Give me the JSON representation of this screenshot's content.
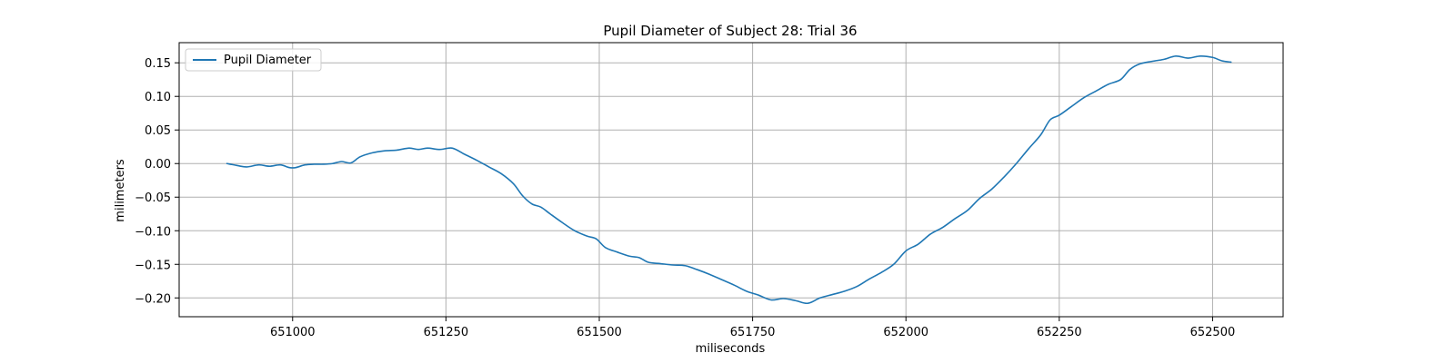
{
  "chart_data": {
    "type": "line",
    "title": "Pupil Diameter of Subject 28: Trial 36",
    "xlabel": "miliseconds",
    "ylabel": "milimeters",
    "xlim": [
      650815,
      652615
    ],
    "ylim": [
      -0.228,
      0.18
    ],
    "xticks": [
      651000,
      651250,
      651500,
      651750,
      652000,
      652250,
      652500
    ],
    "yticks": [
      -0.2,
      -0.15,
      -0.1,
      -0.05,
      0.0,
      0.05,
      0.1,
      0.15
    ],
    "xtick_labels": [
      "651000",
      "651250",
      "651500",
      "651750",
      "652000",
      "652250",
      "652500"
    ],
    "ytick_labels": [
      "−0.20",
      "−0.15",
      "−0.10",
      "−0.05",
      "0.00",
      "0.05",
      "0.10",
      "0.15"
    ],
    "grid": true,
    "legend_position": "top-left",
    "colors": {
      "series": "#1f77b4",
      "grid": "#b0b0b0"
    },
    "series": [
      {
        "name": "Pupil Diameter",
        "x": [
          650893,
          650910,
          650925,
          650945,
          650962,
          650980,
          650995,
          651005,
          651020,
          651035,
          651050,
          651065,
          651080,
          651095,
          651110,
          651130,
          651150,
          651170,
          651190,
          651205,
          651220,
          651240,
          651260,
          651280,
          651300,
          651320,
          651340,
          651360,
          651375,
          651390,
          651405,
          651420,
          651440,
          651460,
          651480,
          651495,
          651510,
          651530,
          651550,
          651565,
          651580,
          651600,
          651620,
          651640,
          651660,
          651680,
          651700,
          651720,
          651740,
          651760,
          651780,
          651800,
          651820,
          651840,
          651860,
          651880,
          651900,
          651920,
          651940,
          651960,
          651980,
          652000,
          652020,
          652040,
          652060,
          652080,
          652100,
          652120,
          652140,
          652160,
          652180,
          652200,
          652220,
          652235,
          652250,
          652270,
          652290,
          652310,
          652330,
          652350,
          652365,
          652380,
          652400,
          652420,
          652440,
          652460,
          652480,
          652500,
          652515,
          652530
        ],
        "values": [
          0.0,
          -0.003,
          -0.005,
          -0.002,
          -0.004,
          -0.002,
          -0.006,
          -0.006,
          -0.002,
          -0.001,
          -0.001,
          0.0,
          0.003,
          0.001,
          0.01,
          0.016,
          0.019,
          0.02,
          0.023,
          0.021,
          0.023,
          0.021,
          0.023,
          0.014,
          0.005,
          -0.005,
          -0.015,
          -0.03,
          -0.048,
          -0.06,
          -0.065,
          -0.075,
          -0.088,
          -0.1,
          -0.108,
          -0.112,
          -0.125,
          -0.132,
          -0.138,
          -0.14,
          -0.147,
          -0.149,
          -0.151,
          -0.152,
          -0.158,
          -0.165,
          -0.173,
          -0.181,
          -0.19,
          -0.196,
          -0.203,
          -0.201,
          -0.204,
          -0.208,
          -0.2,
          -0.195,
          -0.19,
          -0.183,
          -0.172,
          -0.162,
          -0.15,
          -0.13,
          -0.12,
          -0.105,
          -0.095,
          -0.082,
          -0.07,
          -0.052,
          -0.038,
          -0.02,
          0.0,
          0.022,
          0.043,
          0.065,
          0.072,
          0.085,
          0.098,
          0.108,
          0.118,
          0.125,
          0.14,
          0.148,
          0.152,
          0.155,
          0.16,
          0.157,
          0.16,
          0.158,
          0.153,
          0.151
        ]
      }
    ]
  }
}
